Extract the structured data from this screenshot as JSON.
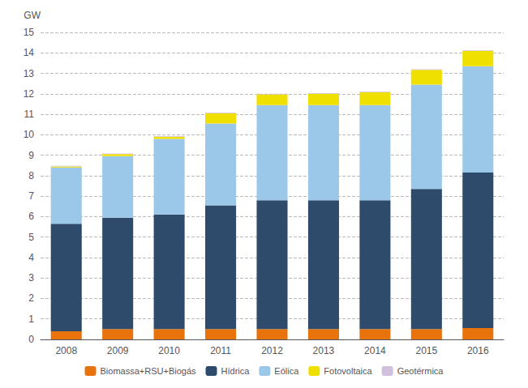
{
  "chart_data": {
    "type": "bar",
    "stacked": true,
    "categories": [
      "2008",
      "2009",
      "2010",
      "2011",
      "2012",
      "2013",
      "2014",
      "2015",
      "2016"
    ],
    "series": [
      {
        "name": "Biomassa+RSU+Biogás",
        "color": "#E8720C",
        "values": [
          0.4,
          0.5,
          0.5,
          0.5,
          0.5,
          0.5,
          0.5,
          0.5,
          0.55
        ]
      },
      {
        "name": "Hídrica",
        "color": "#2E4B6B",
        "values": [
          5.25,
          5.45,
          5.6,
          6.05,
          6.3,
          6.3,
          6.3,
          6.85,
          7.6
        ]
      },
      {
        "name": "Eólica",
        "color": "#9BC8E8",
        "values": [
          2.75,
          3.0,
          3.7,
          4.0,
          4.65,
          4.65,
          4.65,
          5.1,
          5.2
        ]
      },
      {
        "name": "Fotovoltaica",
        "color": "#F0E000",
        "values": [
          0.05,
          0.1,
          0.1,
          0.5,
          0.52,
          0.55,
          0.62,
          0.72,
          0.75
        ]
      },
      {
        "name": "Geotérmica",
        "color": "#D0C0DC",
        "values": [
          0.03,
          0.03,
          0.03,
          0.03,
          0.03,
          0.03,
          0.03,
          0.03,
          0.03
        ]
      }
    ],
    "ylabel": "GW",
    "ylim": [
      0,
      15
    ],
    "yticks": [
      0,
      1,
      2,
      3,
      4,
      5,
      6,
      7,
      8,
      9,
      10,
      11,
      12,
      13,
      14,
      15
    ],
    "grid": true,
    "legend": "bottom"
  }
}
